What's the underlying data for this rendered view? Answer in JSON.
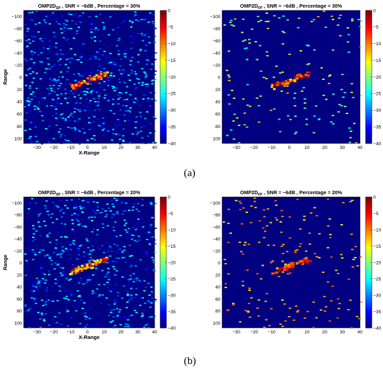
{
  "captions": [
    "(a)",
    "(b)"
  ],
  "chart_data": [
    {
      "type": "heatmap",
      "title_prefix": "OMP2D",
      "title_subscript": "SP",
      "title_suffix": " , SNR = −6dB , Percentage = 30%",
      "xlabel": "X-Range",
      "ylabel": "Range",
      "xlim": [
        -38,
        40
      ],
      "ylim": [
        108,
        -110
      ],
      "xticks": [
        -30,
        -20,
        -10,
        0,
        10,
        20,
        30,
        40
      ],
      "yticks": [
        -100,
        -80,
        -60,
        -40,
        -20,
        0,
        20,
        40,
        60,
        80,
        100
      ],
      "colorbar": {
        "min": -40,
        "max": 0,
        "ticks": [
          0,
          -5,
          -10,
          -15,
          -20,
          -25,
          -30,
          -35,
          -40
        ],
        "colormap": "jet"
      },
      "background_value": -40,
      "target": {
        "x_range": [
          -10,
          10
        ],
        "y_range": [
          -10,
          16
        ]
      },
      "clutter": "dense"
    },
    {
      "type": "heatmap",
      "title_prefix": "OMP2D",
      "title_subscript": "FP",
      "title_suffix": " , SNR = −6dB , Percentage = 30%",
      "xlabel": "",
      "ylabel": "",
      "xlim": [
        -38,
        40
      ],
      "ylim": [
        108,
        -110
      ],
      "xticks": [
        -30,
        -20,
        -10,
        0,
        10,
        20,
        30,
        40
      ],
      "yticks": [
        -100,
        -80,
        -60,
        -40,
        -20,
        0,
        20,
        40,
        60,
        80,
        100
      ],
      "colorbar": {
        "min": -40,
        "max": 0,
        "ticks": [
          0,
          -5,
          -10,
          -15,
          -20,
          -25,
          -30,
          -35,
          -40
        ],
        "colormap": "jet"
      },
      "background_value": -40,
      "target": {
        "x_range": [
          -10,
          10
        ],
        "y_range": [
          -10,
          16
        ]
      },
      "clutter": "sparse"
    },
    {
      "type": "heatmap",
      "title_prefix": "OMP2D",
      "title_subscript": "SP",
      "title_suffix": " , SNR = −6dB , Percentage = 20%",
      "xlabel": "X-Range",
      "ylabel": "Range",
      "xlim": [
        -38,
        40
      ],
      "ylim": [
        108,
        -110
      ],
      "xticks": [
        -30,
        -20,
        -10,
        0,
        10,
        20,
        30,
        40
      ],
      "yticks": [
        -100,
        -80,
        -60,
        -40,
        -20,
        0,
        20,
        40,
        60,
        80,
        100
      ],
      "colorbar": {
        "min": -40,
        "max": 0,
        "ticks": [
          0,
          -5,
          -10,
          -15,
          -20,
          -25,
          -30,
          -35,
          -40
        ],
        "colormap": "jet"
      },
      "background_value": -40,
      "target": {
        "x_range": [
          -10,
          10
        ],
        "y_range": [
          -10,
          16
        ]
      },
      "clutter": "dense"
    },
    {
      "type": "heatmap",
      "title_prefix": "OMP2D",
      "title_subscript": "FP",
      "title_suffix": " , SNR = −6dB , Percentage = 20%",
      "xlabel": "",
      "ylabel": "",
      "xlim": [
        -38,
        40
      ],
      "ylim": [
        108,
        -110
      ],
      "xticks": [
        -30,
        -20,
        -10,
        0,
        10,
        20,
        30,
        40
      ],
      "yticks": [
        -100,
        -80,
        -60,
        -40,
        -20,
        0,
        20,
        40,
        60,
        80,
        100
      ],
      "colorbar": {
        "min": -40,
        "max": 0,
        "ticks": [
          0,
          -5,
          -10,
          -15,
          -20,
          -25,
          -30,
          -35,
          -40
        ],
        "colormap": "jet"
      },
      "background_value": -40,
      "target": {
        "x_range": [
          -10,
          10
        ],
        "y_range": [
          -10,
          16
        ]
      },
      "clutter": "sparse_orange"
    }
  ]
}
